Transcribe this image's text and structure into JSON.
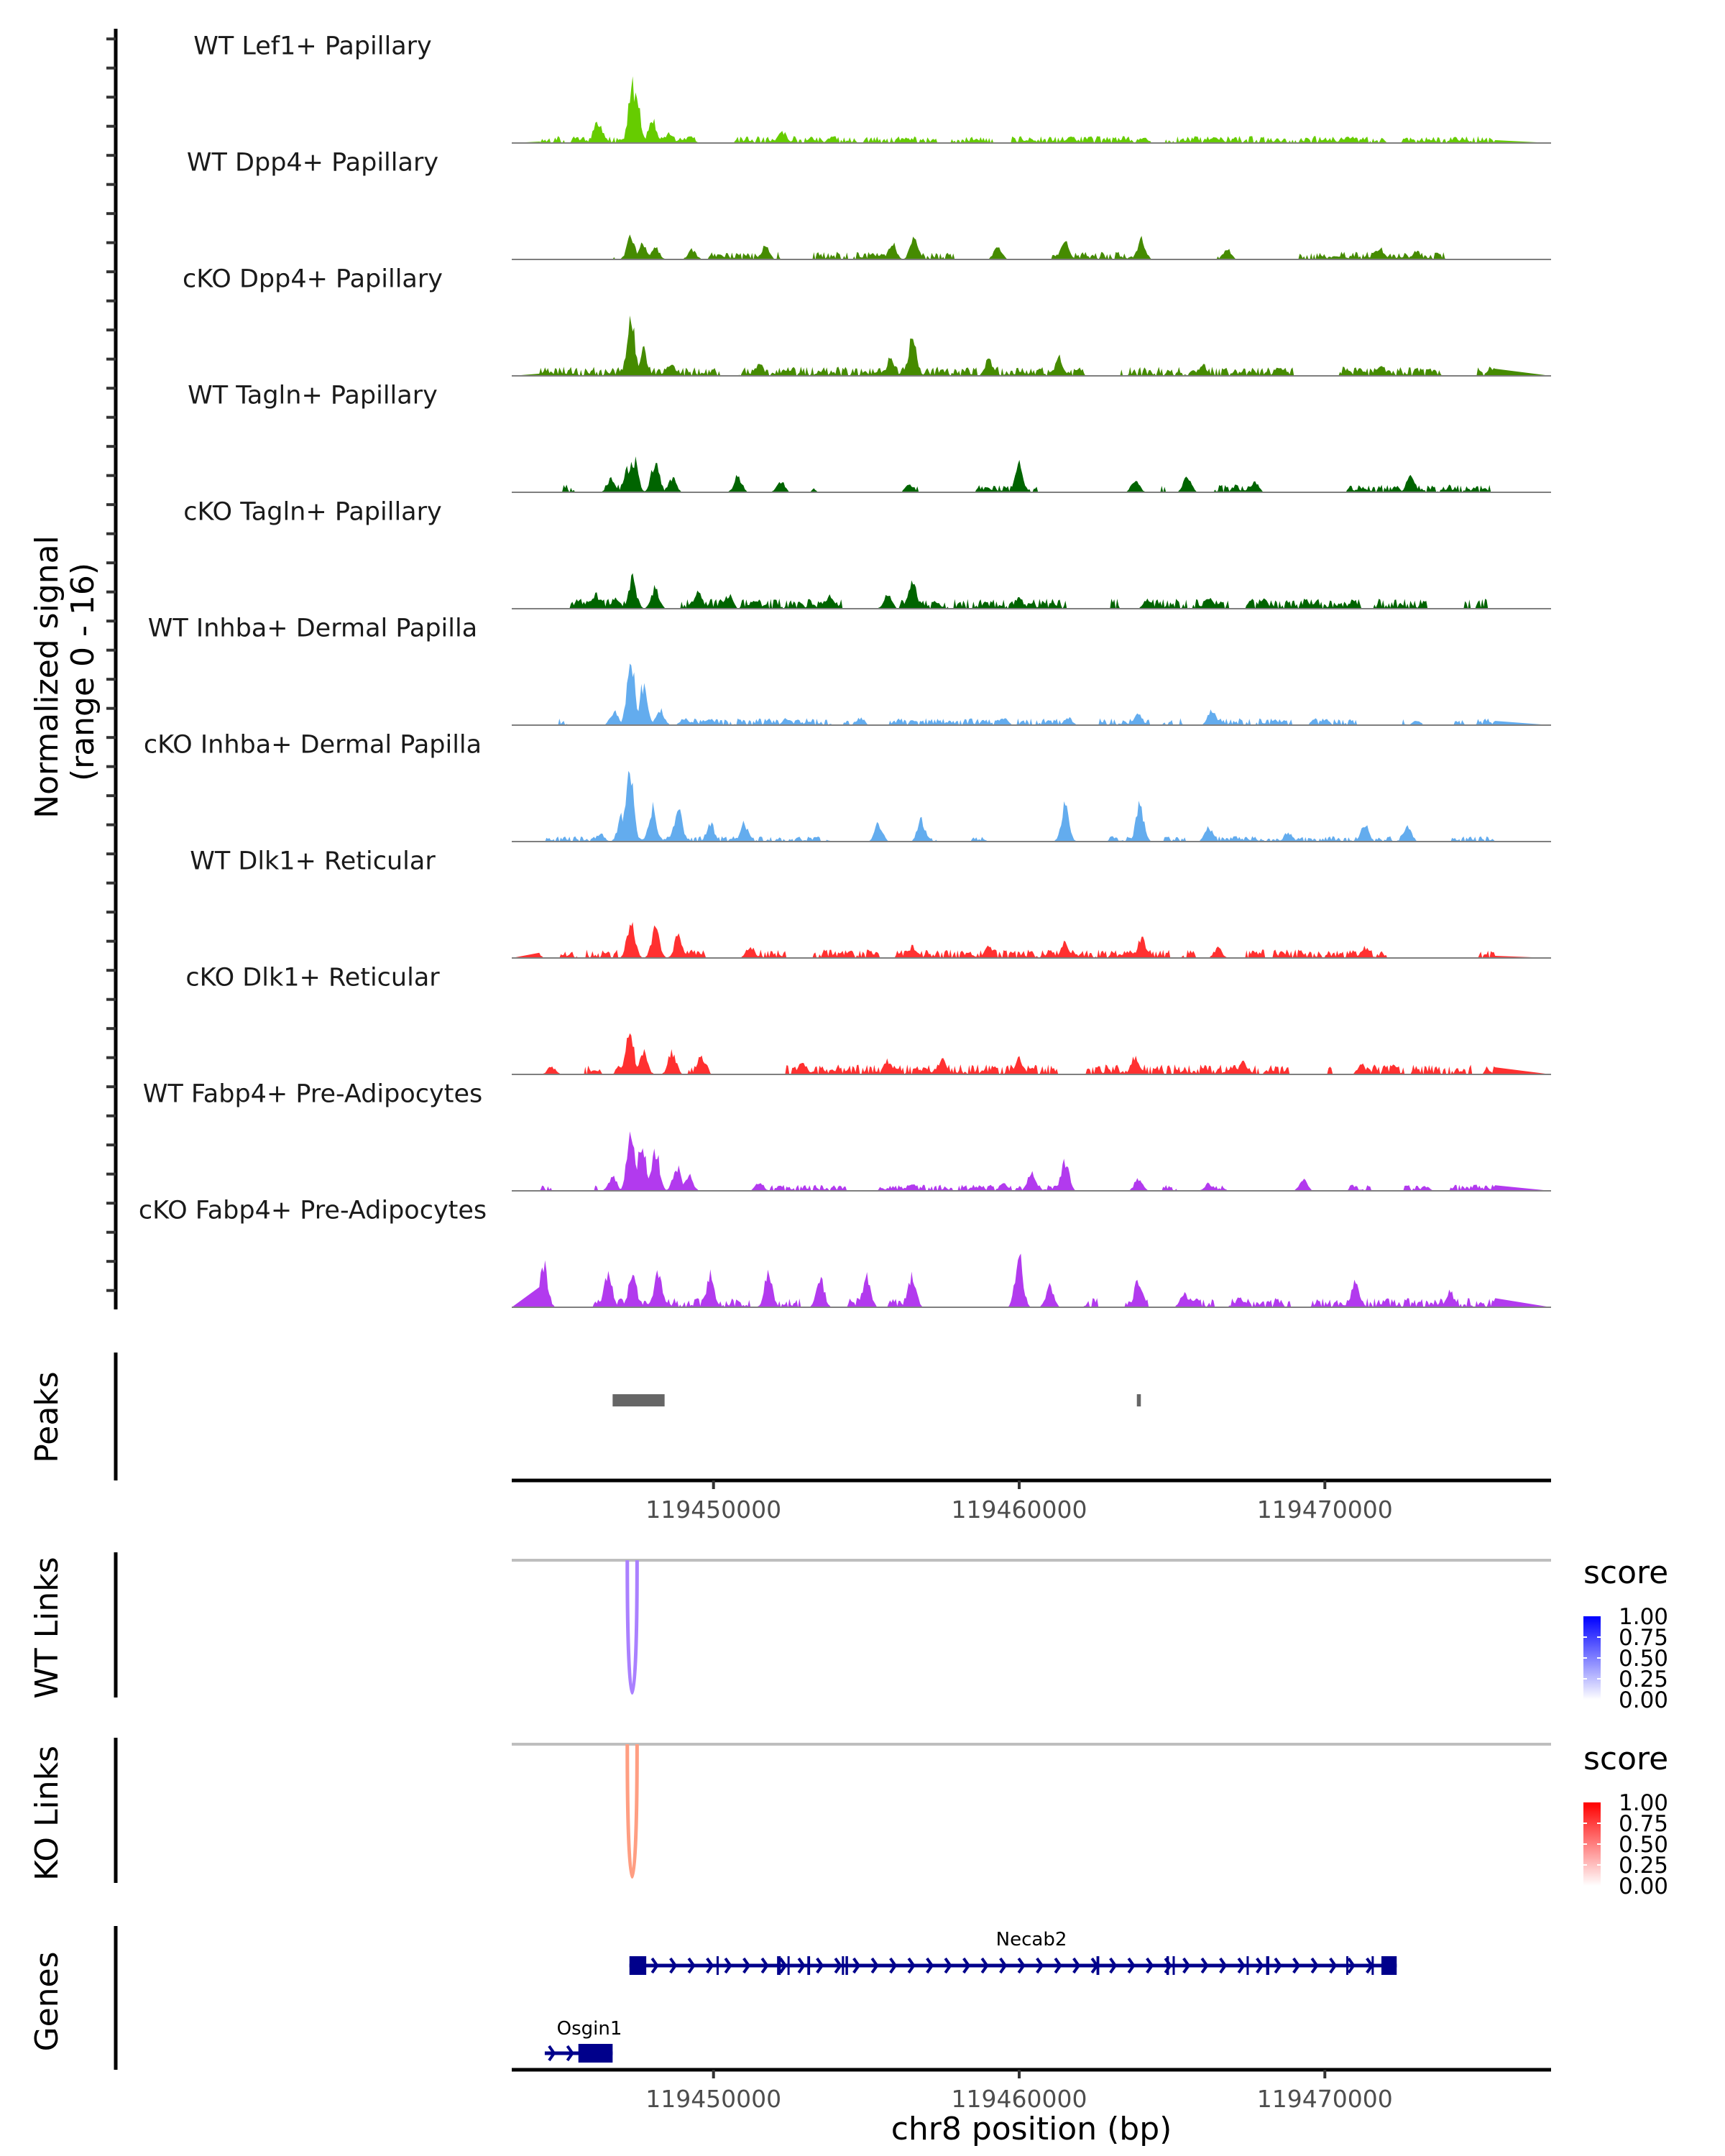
{
  "chart_data": {
    "type": "area",
    "title": "",
    "chromosome": "chr8",
    "xlabel": "chr8 position (bp)",
    "ylabel": "Normalized signal\n(range 0 - 16)",
    "ylabel_lines": [
      "Normalized signal",
      "(range 0 - 16)"
    ],
    "x_range": [
      119443400,
      119477400
    ],
    "y_range": [
      0,
      16
    ],
    "x_ticks": [
      119450000,
      119460000,
      119470000
    ],
    "x_tick_labels": [
      "119450000",
      "119460000",
      "119470000"
    ],
    "coverage_tracks": [
      {
        "name": "WT Lef1+ Papillary",
        "color": "#66CC00",
        "density": 0.85,
        "noise": 0.9,
        "peaks": [
          [
            119446200,
            4.8
          ],
          [
            119446300,
            3.3
          ],
          [
            119447120,
            1.3
          ],
          [
            119447350,
            12.8
          ],
          [
            119447500,
            8.5
          ],
          [
            119448000,
            5.3
          ],
          [
            119448550,
            2.0
          ],
          [
            119449250,
            1.2
          ],
          [
            119452250,
            2.6
          ],
          [
            119456300,
            1.2
          ],
          [
            119461700,
            1.4
          ],
          [
            119464100,
            1.1
          ],
          [
            119466400,
            1.2
          ],
          [
            119470000,
            0.8
          ]
        ]
      },
      {
        "name": "WT Dpp4+ Papillary",
        "color": "#458B00",
        "density": 0.45,
        "noise": 1.0,
        "peaks": [
          [
            119447300,
            5.4
          ],
          [
            119447700,
            3.6
          ],
          [
            119448100,
            2.5
          ],
          [
            119449300,
            2.2
          ],
          [
            119451700,
            3.1
          ],
          [
            119455850,
            3.6
          ],
          [
            119456550,
            4.3
          ],
          [
            119459300,
            2.8
          ],
          [
            119461500,
            4.9
          ],
          [
            119464000,
            4.4
          ],
          [
            119466800,
            2.4
          ],
          [
            119471800,
            2.7
          ],
          [
            119473000,
            2.0
          ]
        ]
      },
      {
        "name": "cKO Dpp4+ Papillary",
        "color": "#458B00",
        "density": 0.8,
        "noise": 1.2,
        "peaks": [
          [
            119447300,
            13.1
          ],
          [
            119447700,
            5.6
          ],
          [
            119448600,
            2.8
          ],
          [
            119451500,
            2.7
          ],
          [
            119455800,
            4.2
          ],
          [
            119456500,
            8.7
          ],
          [
            119459000,
            3.5
          ],
          [
            119461300,
            4.0
          ],
          [
            119466000,
            2.6
          ],
          [
            119468500,
            1.8
          ],
          [
            119471800,
            2.0
          ]
        ]
      },
      {
        "name": "WT Tagln+ Papillary",
        "color": "#006400",
        "density": 0.35,
        "noise": 1.0,
        "peaks": [
          [
            119446650,
            2.9
          ],
          [
            119447200,
            5.0
          ],
          [
            119447400,
            7.2
          ],
          [
            119448100,
            7.3
          ],
          [
            119448650,
            3.2
          ],
          [
            119450800,
            3.5
          ],
          [
            119452200,
            2.4
          ],
          [
            119456400,
            1.5
          ],
          [
            119460000,
            6.2
          ],
          [
            119463800,
            2.8
          ],
          [
            119465500,
            3.3
          ],
          [
            119467700,
            2.5
          ],
          [
            119472800,
            3.7
          ]
        ]
      },
      {
        "name": "cKO Tagln+ Papillary",
        "color": "#006400",
        "density": 0.75,
        "noise": 1.3,
        "peaks": [
          [
            119446150,
            3.2
          ],
          [
            119446800,
            2.5
          ],
          [
            119447350,
            6.5
          ],
          [
            119448100,
            4.5
          ],
          [
            119449500,
            4.1
          ],
          [
            119450500,
            3.0
          ],
          [
            119453800,
            3.0
          ],
          [
            119455700,
            3.3
          ],
          [
            119456500,
            6.5
          ],
          [
            119460000,
            2.5
          ],
          [
            119464200,
            2.0
          ],
          [
            119466200,
            2.3
          ],
          [
            119468000,
            2.2
          ]
        ]
      },
      {
        "name": "WT Inhba+ Dermal Papilla",
        "color": "#63ACEE",
        "density": 0.45,
        "noise": 0.9,
        "peaks": [
          [
            119446750,
            2.9
          ],
          [
            119447300,
            14.0
          ],
          [
            119447700,
            8.6
          ],
          [
            119448250,
            3.5
          ],
          [
            119449050,
            1.6
          ],
          [
            119452400,
            1.5
          ],
          [
            119454800,
            1.6
          ],
          [
            119459500,
            1.6
          ],
          [
            119461600,
            1.6
          ],
          [
            119463900,
            2.5
          ],
          [
            119466300,
            3.2
          ],
          [
            119470000,
            1.3
          ],
          [
            119473000,
            1.0
          ]
        ]
      },
      {
        "name": "cKO Inhba+ Dermal Papilla",
        "color": "#63ACEE",
        "density": 0.35,
        "noise": 0.7,
        "peaks": [
          [
            119446300,
            1.8
          ],
          [
            119447000,
            6.0
          ],
          [
            119447250,
            16.0
          ],
          [
            119448000,
            7.5
          ],
          [
            119448850,
            7.5
          ],
          [
            119449900,
            4.0
          ],
          [
            119451000,
            4.0
          ],
          [
            119455400,
            3.9
          ],
          [
            119456800,
            4.6
          ],
          [
            119461500,
            7.9
          ],
          [
            119463950,
            8.0
          ],
          [
            119466200,
            3.3
          ],
          [
            119468800,
            2.1
          ],
          [
            119471300,
            3.8
          ],
          [
            119472700,
            3.8
          ]
        ]
      },
      {
        "name": "WT Dlk1+ Reticular",
        "color": "#FF3030",
        "density": 0.7,
        "noise": 1.1,
        "peaks": [
          [
            119444150,
            2.1
          ],
          [
            119447300,
            8.5
          ],
          [
            119448100,
            6.7
          ],
          [
            119448850,
            5.0
          ],
          [
            119451200,
            2.7
          ],
          [
            119456500,
            2.5
          ],
          [
            119459000,
            2.4
          ],
          [
            119461500,
            3.5
          ],
          [
            119464000,
            4.5
          ],
          [
            119466500,
            2.2
          ],
          [
            119471300,
            2.5
          ]
        ]
      },
      {
        "name": "cKO Dlk1+ Reticular",
        "color": "#FF3030",
        "density": 0.82,
        "noise": 1.3,
        "peaks": [
          [
            119444700,
            1.7
          ],
          [
            119447250,
            10.4
          ],
          [
            119447700,
            5.5
          ],
          [
            119448650,
            5.2
          ],
          [
            119449600,
            4.0
          ],
          [
            119452900,
            3.1
          ],
          [
            119455700,
            3.2
          ],
          [
            119457500,
            3.0
          ],
          [
            119460000,
            3.5
          ],
          [
            119463800,
            4.3
          ],
          [
            119467300,
            2.8
          ],
          [
            119471200,
            2.3
          ]
        ]
      },
      {
        "name": "WT Fabp4+ Pre-Adipocytes",
        "color": "#B23AEE",
        "density": 0.35,
        "noise": 0.8,
        "peaks": [
          [
            119446700,
            3.2
          ],
          [
            119447300,
            13.3
          ],
          [
            119447650,
            10.8
          ],
          [
            119448100,
            9.0
          ],
          [
            119448800,
            5.5
          ],
          [
            119449200,
            3.5
          ],
          [
            119451500,
            2.0
          ],
          [
            119456500,
            1.5
          ],
          [
            119459500,
            1.5
          ],
          [
            119460400,
            3.8
          ],
          [
            119461500,
            6.4
          ],
          [
            119463900,
            2.7
          ],
          [
            119466200,
            1.6
          ],
          [
            119469300,
            2.5
          ],
          [
            119473300,
            1.0
          ]
        ]
      },
      {
        "name": "cKO Fabp4+ Pre-Adipocytes",
        "color": "#B23AEE",
        "density": 0.65,
        "noise": 1.2,
        "peaks": [
          [
            119444450,
            9.5
          ],
          [
            119446550,
            7.5
          ],
          [
            119447350,
            8.0
          ],
          [
            119448200,
            8.0
          ],
          [
            119449900,
            7.0
          ],
          [
            119451800,
            7.5
          ],
          [
            119453500,
            6.0
          ],
          [
            119455000,
            6.5
          ],
          [
            119456500,
            7.0
          ],
          [
            119460000,
            11.0
          ],
          [
            119461000,
            4.5
          ],
          [
            119463900,
            6.5
          ],
          [
            119465400,
            3.0
          ],
          [
            119467200,
            2.0
          ],
          [
            119471000,
            5.5
          ],
          [
            119474100,
            3.5
          ]
        ]
      }
    ],
    "peaks_track": {
      "name": "Peaks",
      "color": "#666666",
      "regions": [
        [
          119446700,
          119448400
        ],
        [
          119463850,
          119463980
        ]
      ]
    },
    "link_tracks": [
      {
        "name": "WT Links",
        "color_low": "#FFFFFF",
        "color_high": "#0000FF",
        "line_color": "#AA80FF",
        "links": [
          {
            "start": 119447180,
            "end": 119447500,
            "score": 0.5
          }
        ]
      },
      {
        "name": "KO Links",
        "color_low": "#FFFFFF",
        "color_high": "#FF0000",
        "line_color": "#FF9E82",
        "links": [
          {
            "start": 119447180,
            "end": 119447500,
            "score": 0.5
          }
        ]
      }
    ],
    "legends": [
      {
        "title": "score",
        "ticks": [
          "1.00",
          "0.75",
          "0.50",
          "0.25",
          "0.00"
        ],
        "color_low": "#FFFFFF",
        "color_high": "#0000FF",
        "placement": "right"
      },
      {
        "title": "score",
        "ticks": [
          "1.00",
          "0.75",
          "0.50",
          "0.25",
          "0.00"
        ],
        "color_low": "#FFFFFF",
        "color_high": "#FF0000",
        "placement": "right"
      }
    ],
    "genes_track": {
      "name": "Genes",
      "color": "#00008B",
      "genes": [
        {
          "name": "Necab2",
          "strand": "+",
          "start": 119447250,
          "end": 119472350,
          "exons": [
            [
              119447250,
              119447800
            ],
            [
              119450100,
              119450140
            ],
            [
              119452080,
              119452200
            ],
            [
              119452420,
              119452450
            ],
            [
              119453070,
              119453160
            ],
            [
              119454200,
              119454260
            ],
            [
              119454320,
              119454400
            ],
            [
              119462530,
              119462620
            ],
            [
              119464820,
              119464900
            ],
            [
              119465020,
              119465080
            ],
            [
              119467440,
              119467480
            ],
            [
              119468080,
              119468180
            ],
            [
              119470700,
              119470740
            ],
            [
              119471530,
              119471580
            ],
            [
              119471850,
              119472350
            ]
          ]
        },
        {
          "name": "Osgin1",
          "strand": "+",
          "start": 119444480,
          "end": 119446700,
          "exons": [
            [
              119445580,
              119446700
            ]
          ]
        }
      ]
    },
    "panel_labels": [
      "Peaks",
      "WT Links",
      "KO Links",
      "Genes"
    ]
  }
}
